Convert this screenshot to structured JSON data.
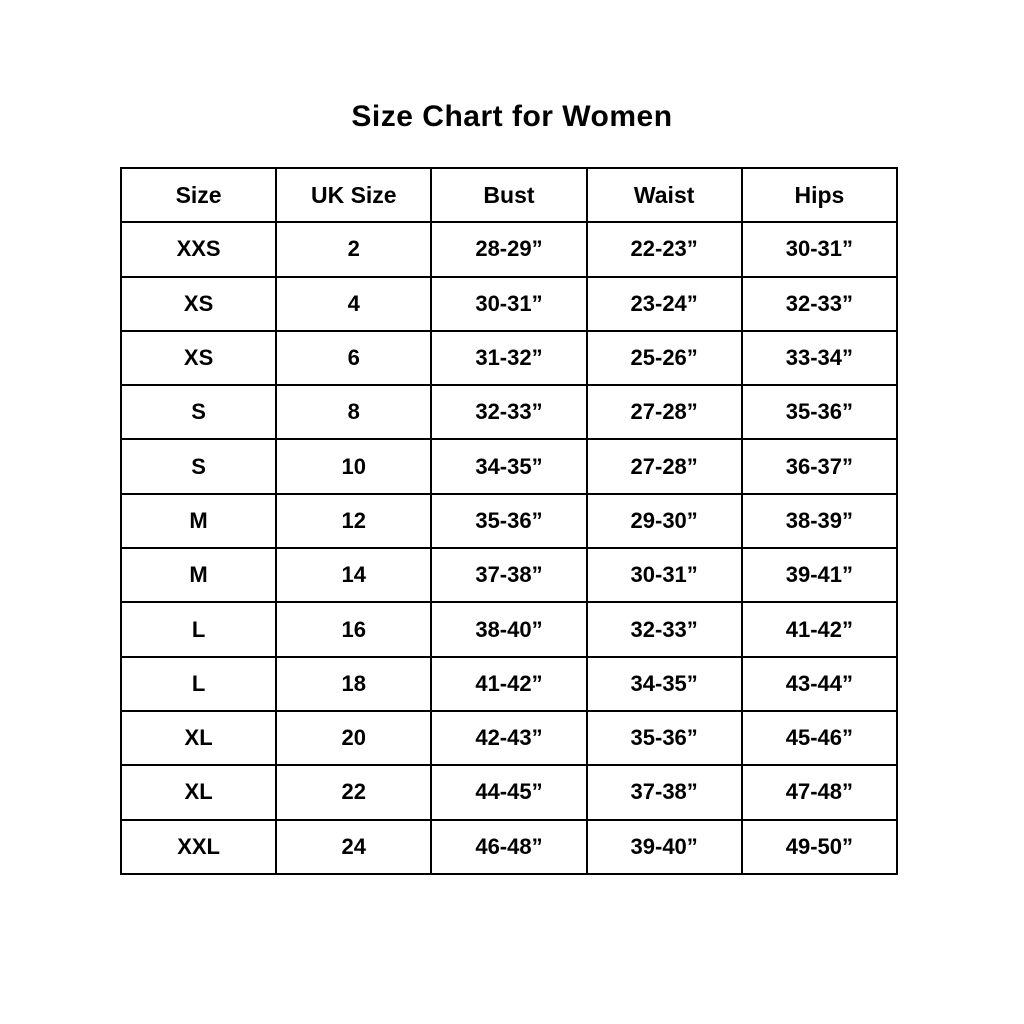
{
  "title": "Size Chart for Women",
  "chart_data": {
    "type": "table",
    "title": "Size Chart for Women",
    "columns": [
      "Size",
      "UK Size",
      "Bust",
      "Waist",
      "Hips"
    ],
    "rows": [
      [
        "XXS",
        "2",
        "28-29”",
        "22-23”",
        "30-31”"
      ],
      [
        "XS",
        "4",
        "30-31”",
        "23-24”",
        "32-33”"
      ],
      [
        "XS",
        "6",
        "31-32”",
        "25-26”",
        "33-34”"
      ],
      [
        "S",
        "8",
        "32-33”",
        "27-28”",
        "35-36”"
      ],
      [
        "S",
        "10",
        "34-35”",
        "27-28”",
        "36-37”"
      ],
      [
        "M",
        "12",
        "35-36”",
        "29-30”",
        "38-39”"
      ],
      [
        "M",
        "14",
        "37-38”",
        "30-31”",
        "39-41”"
      ],
      [
        "L",
        "16",
        "38-40”",
        "32-33”",
        "41-42”"
      ],
      [
        "L",
        "18",
        "41-42”",
        "34-35”",
        "43-44”"
      ],
      [
        "XL",
        "20",
        "42-43”",
        "35-36”",
        "45-46”"
      ],
      [
        "XL",
        "22",
        "44-45”",
        "37-38”",
        "47-48”"
      ],
      [
        "XXL",
        "24",
        "46-48”",
        "39-40”",
        "49-50”"
      ]
    ]
  },
  "colors": {
    "background": "#ffffff",
    "border": "#000000",
    "text": "#000000"
  }
}
